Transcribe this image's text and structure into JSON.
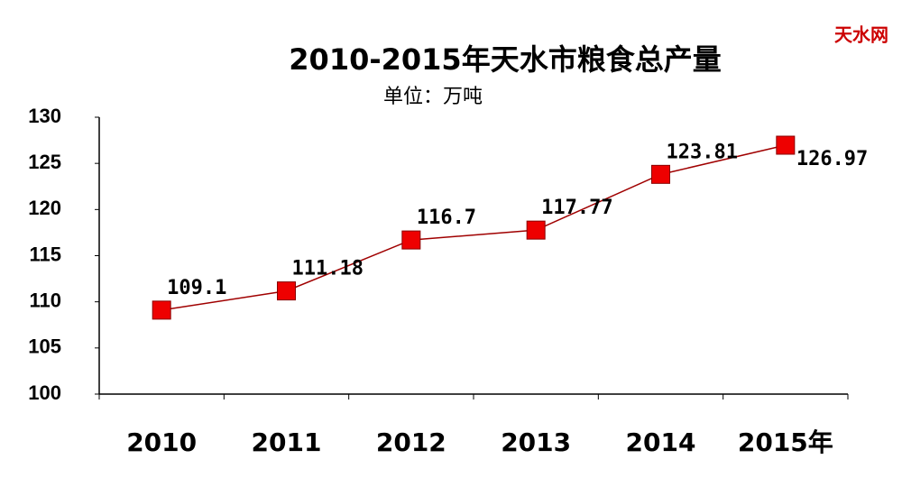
{
  "chart_data": {
    "type": "line",
    "title": "2010-2015年天水市粮食总产量",
    "subtitle": "单位：万吨",
    "watermark": "天水网",
    "categories": [
      "2010",
      "2011",
      "2012",
      "2013",
      "2014",
      "2015年"
    ],
    "series": [
      {
        "name": "粮食总产量",
        "color": "#ee0000",
        "values": [
          109.1,
          111.18,
          116.7,
          117.77,
          123.81,
          126.97
        ]
      }
    ],
    "ylim": [
      100,
      130
    ],
    "yticks": [
      100,
      105,
      110,
      115,
      120,
      125,
      130
    ]
  }
}
